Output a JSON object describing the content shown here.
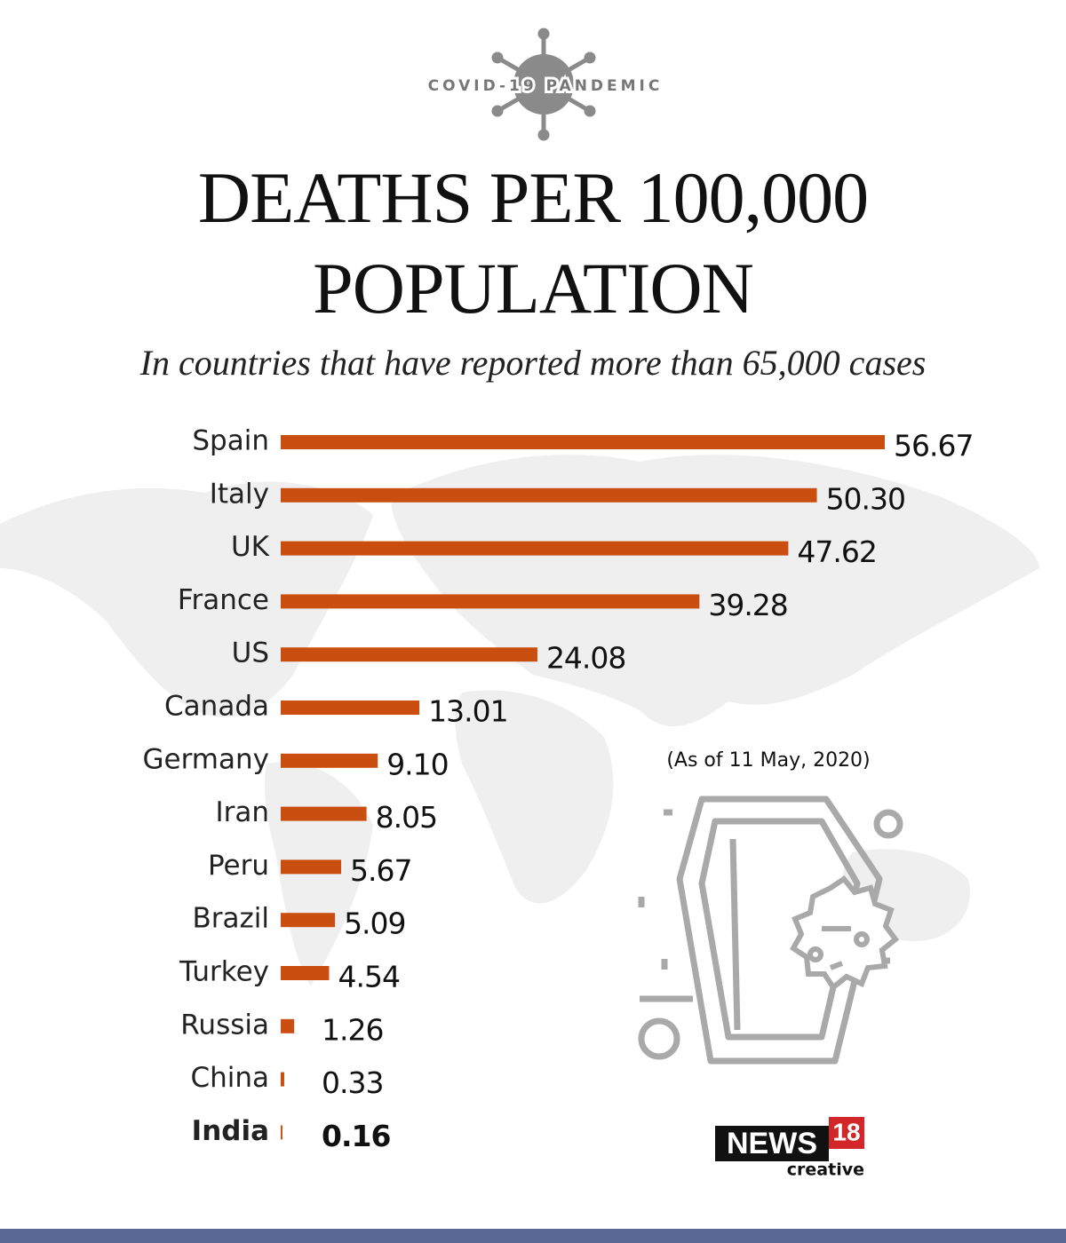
{
  "chart_data": {
    "type": "hbar",
    "kicker": "COVID-19 PANDEMIC",
    "title": "DEATHS PER 100,000 POPULATION",
    "subtitle": "In countries that have reported more than 65,000 cases",
    "note": "(As of 11 May, 2020)",
    "categories": [
      "Spain",
      "Italy",
      "UK",
      "France",
      "US",
      "Canada",
      "Germany",
      "Iran",
      "Peru",
      "Brazil",
      "Turkey",
      "Russia",
      "China",
      "India"
    ],
    "values": [
      56.67,
      50.3,
      47.62,
      39.28,
      24.08,
      13.01,
      9.1,
      8.05,
      5.67,
      5.09,
      4.54,
      1.26,
      0.33,
      0.16
    ],
    "value_labels": [
      "56.67",
      "50.30",
      "47.62",
      "39.28",
      "24.08",
      "13.01",
      "9.10",
      "8.05",
      "5.67",
      "5.09",
      "4.54",
      "1.26",
      "0.33",
      "0.16"
    ],
    "color": "#c94e0f",
    "highlight": "India",
    "logo": {
      "name": "NEWS",
      "number": "18",
      "tagline": "creative"
    }
  }
}
